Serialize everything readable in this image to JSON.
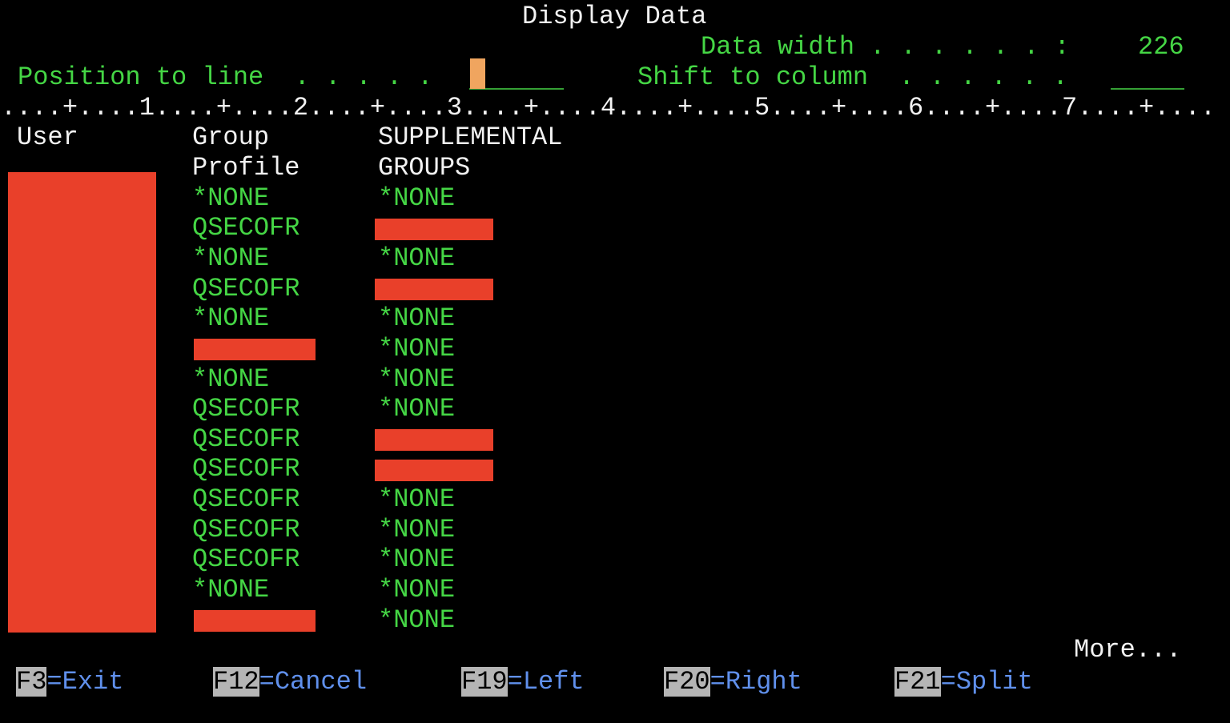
{
  "title": "Display Data",
  "header": {
    "data_width_label": "Data width . . . . . . :",
    "data_width_value": "226",
    "position_to_line_label": "Position to line  . . . . .",
    "position_to_line_value": "",
    "shift_to_column_label": "Shift to column  . . . . . .",
    "shift_to_column_value": "",
    "ruler": "....+....1....+....2....+....3....+....4....+....5....+....6....+....7....+...."
  },
  "table": {
    "columns": {
      "user": "User",
      "group_profile_line1": "Group",
      "group_profile_line2": "Profile",
      "supplemental_line1": "SUPPLEMENTAL",
      "supplemental_line2": "GROUPS"
    },
    "user_column_redacted": true,
    "rows": [
      {
        "group_profile": "*NONE",
        "supplemental_groups": "*NONE"
      },
      {
        "group_profile": "QSECOFR",
        "supplemental_groups": null
      },
      {
        "group_profile": "*NONE",
        "supplemental_groups": "*NONE"
      },
      {
        "group_profile": "QSECOFR",
        "supplemental_groups": null
      },
      {
        "group_profile": "*NONE",
        "supplemental_groups": "*NONE"
      },
      {
        "group_profile": null,
        "supplemental_groups": "*NONE"
      },
      {
        "group_profile": "*NONE",
        "supplemental_groups": "*NONE"
      },
      {
        "group_profile": "QSECOFR",
        "supplemental_groups": "*NONE"
      },
      {
        "group_profile": "QSECOFR",
        "supplemental_groups": null
      },
      {
        "group_profile": "QSECOFR",
        "supplemental_groups": null
      },
      {
        "group_profile": "QSECOFR",
        "supplemental_groups": "*NONE"
      },
      {
        "group_profile": "QSECOFR",
        "supplemental_groups": "*NONE"
      },
      {
        "group_profile": "QSECOFR",
        "supplemental_groups": "*NONE"
      },
      {
        "group_profile": "*NONE",
        "supplemental_groups": "*NONE"
      },
      {
        "group_profile": null,
        "supplemental_groups": "*NONE"
      }
    ]
  },
  "pagination": {
    "more_label": "More..."
  },
  "function_keys": [
    {
      "key": "F3",
      "label": "=Exit"
    },
    {
      "key": "F12",
      "label": "=Cancel"
    },
    {
      "key": "F19",
      "label": "=Left"
    },
    {
      "key": "F20",
      "label": "=Right"
    },
    {
      "key": "F21",
      "label": "=Split"
    }
  ],
  "colors": {
    "background": "#000000",
    "green_text": "#45d645",
    "white_text": "#f2f2f2",
    "blue_text": "#6090ec",
    "redaction_red": "#e9402a",
    "cursor_orange": "#f0a55f",
    "field_underline_green": "#35a035",
    "key_badge_gray": "#b5b5b5"
  }
}
